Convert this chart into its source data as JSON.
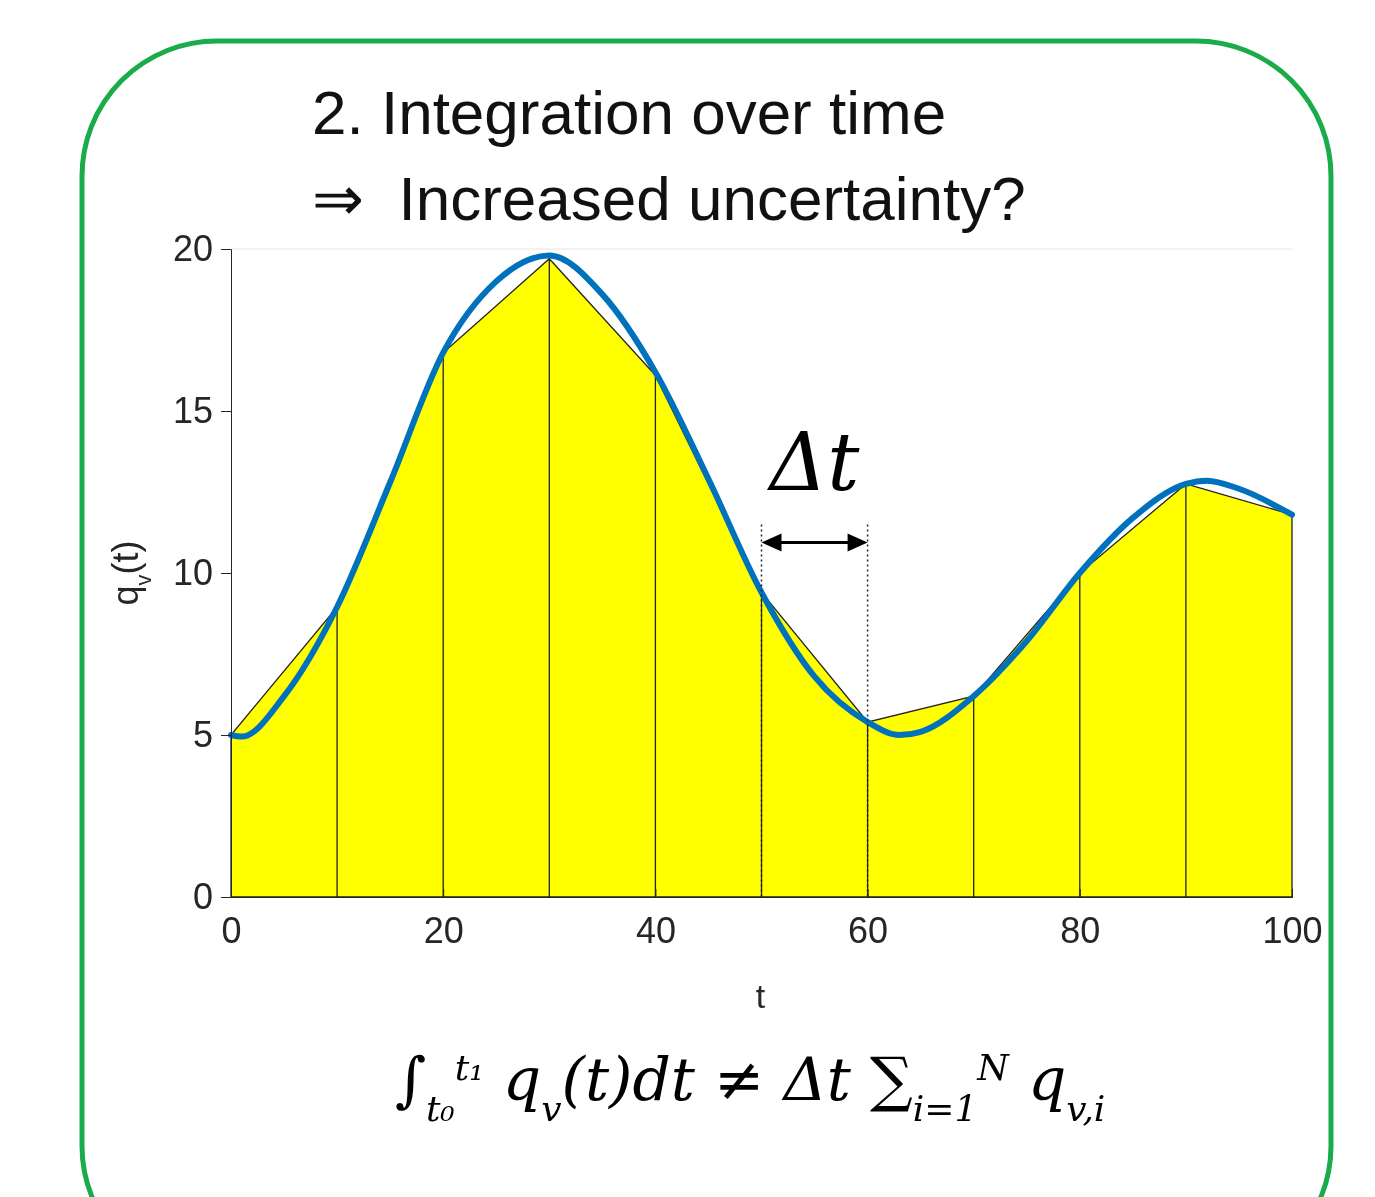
{
  "chart_data": {
    "type": "area",
    "title": "2. Integration over time",
    "subtitle": "⇒  Increased uncertainty?",
    "xlabel": "t",
    "ylabel": "q$_{v}$(t)",
    "xlim": [
      0,
      100
    ],
    "xticks": [
      0,
      20,
      40,
      60,
      80,
      100
    ],
    "ylim": [
      0,
      20
    ],
    "yticks": [
      0,
      5,
      10,
      15,
      20
    ],
    "series": [
      {
        "color": "#ffff00",
        "x": [
          0,
          10,
          20,
          30,
          40,
          50,
          60,
          70,
          80,
          90,
          100
        ],
        "values": [
          5.0,
          8.95,
          16.8,
          19.7,
          16.1,
          9.4,
          5.4,
          6.2,
          10.0,
          12.75,
          11.8
        ]
      },
      {
        "type": "line",
        "color": "#0072bd",
        "x": [
          0,
          1,
          5,
          10,
          15,
          20,
          25,
          30,
          35,
          40,
          45,
          50,
          55,
          60,
          63,
          65,
          70,
          75,
          80,
          85,
          90,
          92,
          95,
          100
        ],
        "values": [
          5.0,
          4.95,
          6.2,
          8.95,
          12.8,
          16.8,
          19.0,
          19.8,
          18.6,
          16.2,
          12.9,
          9.4,
          6.8,
          5.4,
          5.0,
          5.1,
          6.2,
          7.9,
          10.0,
          11.7,
          12.75,
          12.85,
          12.6,
          11.8
        ]
      }
    ],
    "annotations": [
      {
        "text": "Δt",
        "x": 50,
        "y": 9.4
      },
      "∫$_{t₀}$$^{t₁}$ q$_{v}$(t)dt ≠ Δt ∑$_{i=1}$$^{N}$ q$_{v,i}$"
    ]
  }
}
